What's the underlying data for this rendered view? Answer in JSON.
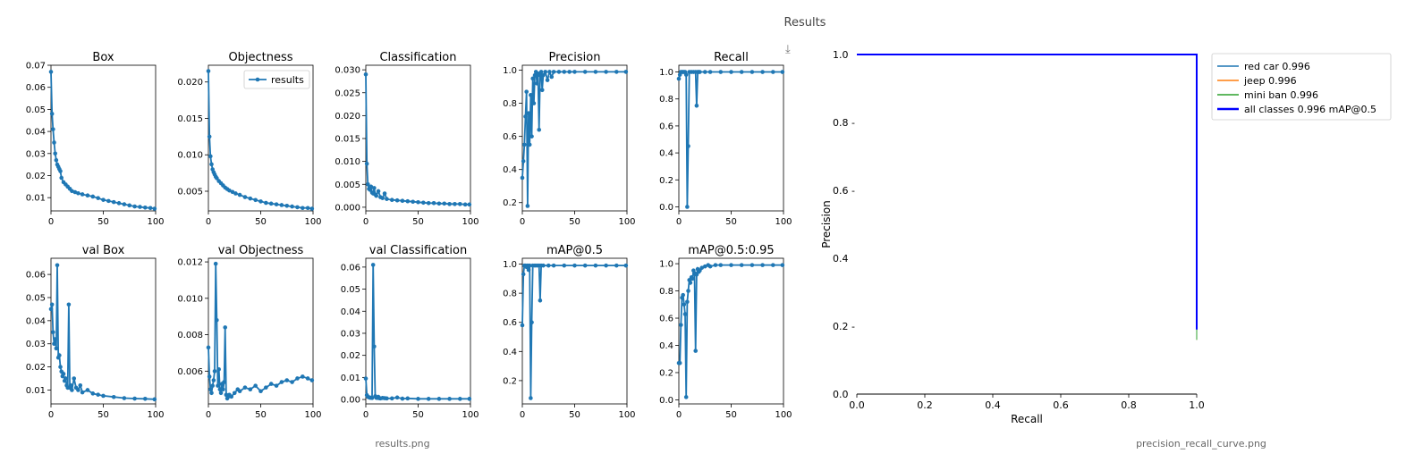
{
  "panel": {
    "title": "Results",
    "download_icon": "download-icon"
  },
  "captions": {
    "results": "results.png",
    "pr_curve": "precision_recall_curve.png"
  },
  "colors": {
    "series": "#1f77b4",
    "red_car": "#1f77b4",
    "jeep": "#ff7f0e",
    "mini_ban": "#2ca02c",
    "all": "#0000ff"
  },
  "chart_data": [
    {
      "type": "line",
      "title": "Box",
      "legend": "",
      "xlim": [
        0,
        100
      ],
      "ylim": [
        0.004,
        0.07
      ],
      "xticks": [
        0,
        50,
        100
      ],
      "yticks": [
        0.01,
        0.02,
        0.03,
        0.04,
        0.05,
        0.06,
        0.07
      ],
      "ytick_labels": [
        "0.01",
        "0.02",
        "0.03",
        "0.04",
        "0.05",
        "0.06",
        "0.07"
      ],
      "x": [
        0,
        1,
        2,
        3,
        4,
        5,
        6,
        7,
        8,
        9,
        10,
        12,
        14,
        16,
        18,
        20,
        23,
        26,
        30,
        35,
        40,
        45,
        50,
        55,
        60,
        65,
        70,
        75,
        80,
        85,
        90,
        95,
        99
      ],
      "y": [
        0.067,
        0.048,
        0.041,
        0.035,
        0.03,
        0.027,
        0.025,
        0.024,
        0.023,
        0.022,
        0.019,
        0.017,
        0.016,
        0.015,
        0.014,
        0.013,
        0.0125,
        0.012,
        0.0115,
        0.011,
        0.0105,
        0.0098,
        0.009,
        0.0085,
        0.008,
        0.0075,
        0.007,
        0.0065,
        0.006,
        0.0058,
        0.0055,
        0.0053,
        0.005
      ]
    },
    {
      "type": "line",
      "title": "Objectness",
      "legend": "results",
      "xlim": [
        0,
        100
      ],
      "ylim": [
        0.0023,
        0.0223
      ],
      "xticks": [
        0,
        50,
        100
      ],
      "yticks": [
        0.005,
        0.01,
        0.015,
        0.02
      ],
      "ytick_labels": [
        "0.005",
        "0.010",
        "0.015",
        "0.020"
      ],
      "x": [
        0,
        1,
        2,
        3,
        4,
        5,
        6,
        7,
        8,
        10,
        12,
        14,
        16,
        18,
        20,
        23,
        26,
        30,
        35,
        40,
        45,
        50,
        55,
        60,
        65,
        70,
        75,
        80,
        85,
        90,
        95,
        99
      ],
      "y": [
        0.0215,
        0.0125,
        0.0098,
        0.0087,
        0.008,
        0.0076,
        0.0073,
        0.007,
        0.0068,
        0.0064,
        0.0061,
        0.0058,
        0.0055,
        0.0053,
        0.0051,
        0.0049,
        0.0047,
        0.0045,
        0.0042,
        0.004,
        0.0038,
        0.0036,
        0.0034,
        0.0033,
        0.0032,
        0.0031,
        0.003,
        0.0029,
        0.0028,
        0.0027,
        0.0027,
        0.0026
      ]
    },
    {
      "type": "line",
      "title": "Classification",
      "legend": "",
      "xlim": [
        0,
        100
      ],
      "ylim": [
        -0.0008,
        0.031
      ],
      "xticks": [
        0,
        50,
        100
      ],
      "yticks": [
        0,
        0.005,
        0.01,
        0.015,
        0.02,
        0.025,
        0.03
      ],
      "ytick_labels": [
        "0.000",
        "0.005",
        "0.010",
        "0.015",
        "0.020",
        "0.025",
        "0.030"
      ],
      "x": [
        0,
        1,
        2,
        3,
        4,
        5,
        6,
        7,
        8,
        9,
        10,
        12,
        14,
        16,
        18,
        20,
        25,
        30,
        35,
        40,
        45,
        50,
        55,
        60,
        65,
        70,
        75,
        80,
        85,
        90,
        95,
        99
      ],
      "y": [
        0.029,
        0.0095,
        0.005,
        0.004,
        0.0038,
        0.0045,
        0.0032,
        0.003,
        0.0042,
        0.0028,
        0.0025,
        0.0035,
        0.0022,
        0.002,
        0.003,
        0.0018,
        0.0016,
        0.0015,
        0.0014,
        0.0013,
        0.0012,
        0.0011,
        0.001,
        0.0009,
        0.0009,
        0.0008,
        0.0008,
        0.0007,
        0.0007,
        0.0007,
        0.0006,
        0.0006
      ]
    },
    {
      "type": "line",
      "title": "Precision",
      "legend": "",
      "xlim": [
        0,
        100
      ],
      "ylim": [
        0.15,
        1.03
      ],
      "xticks": [
        0,
        50,
        100
      ],
      "yticks": [
        0.2,
        0.4,
        0.6,
        0.8,
        1.0
      ],
      "ytick_labels": [
        "0.2",
        "0.4",
        "0.6",
        "0.8",
        "1.0"
      ],
      "x": [
        0,
        1,
        2,
        3,
        4,
        5,
        6,
        7,
        8,
        9,
        10,
        11,
        12,
        13,
        14,
        15,
        16,
        17,
        18,
        19,
        20,
        22,
        24,
        26,
        28,
        30,
        35,
        40,
        45,
        50,
        60,
        70,
        80,
        90,
        99
      ],
      "y": [
        0.35,
        0.45,
        0.55,
        0.72,
        0.87,
        0.18,
        0.74,
        0.55,
        0.85,
        0.6,
        0.95,
        0.8,
        0.97,
        0.99,
        0.92,
        0.98,
        0.64,
        0.97,
        0.99,
        0.88,
        0.97,
        0.99,
        0.94,
        0.99,
        0.96,
        0.99,
        0.99,
        0.99,
        0.99,
        0.99,
        0.99,
        0.99,
        0.99,
        0.99,
        0.99
      ]
    },
    {
      "type": "line",
      "title": "Recall",
      "legend": "",
      "xlim": [
        0,
        100
      ],
      "ylim": [
        -0.03,
        1.05
      ],
      "xticks": [
        0,
        50,
        100
      ],
      "yticks": [
        0,
        0.2,
        0.4,
        0.6,
        0.8,
        1.0
      ],
      "ytick_labels": [
        "0.0",
        "0.2",
        "0.4",
        "0.6",
        "0.8",
        "1.0"
      ],
      "x": [
        0,
        1,
        2,
        3,
        4,
        5,
        6,
        7,
        8,
        9,
        10,
        12,
        14,
        16,
        17,
        18,
        19,
        20,
        25,
        30,
        40,
        50,
        60,
        70,
        80,
        90,
        99
      ],
      "y": [
        0.95,
        0.98,
        1.0,
        1.0,
        1.0,
        1.0,
        1.0,
        0.98,
        0.0,
        0.45,
        1.0,
        1.0,
        1.0,
        1.0,
        0.75,
        1.0,
        1.0,
        1.0,
        1.0,
        1.0,
        1.0,
        1.0,
        1.0,
        1.0,
        1.0,
        1.0,
        1.0
      ]
    },
    {
      "type": "line",
      "title": "val Box",
      "legend": "",
      "xlim": [
        0,
        100
      ],
      "ylim": [
        0.004,
        0.067
      ],
      "xticks": [
        0,
        50,
        100
      ],
      "yticks": [
        0.01,
        0.02,
        0.03,
        0.04,
        0.05,
        0.06
      ],
      "ytick_labels": [
        "0.01",
        "0.02",
        "0.03",
        "0.04",
        "0.05",
        "0.06"
      ],
      "x": [
        0,
        1,
        2,
        3,
        4,
        5,
        6,
        7,
        8,
        9,
        10,
        11,
        12,
        13,
        14,
        15,
        16,
        17,
        18,
        19,
        20,
        22,
        24,
        26,
        28,
        30,
        35,
        40,
        45,
        50,
        60,
        70,
        80,
        90,
        99
      ],
      "y": [
        0.045,
        0.047,
        0.035,
        0.03,
        0.032,
        0.028,
        0.064,
        0.024,
        0.025,
        0.02,
        0.018,
        0.016,
        0.017,
        0.014,
        0.015,
        0.012,
        0.011,
        0.047,
        0.011,
        0.012,
        0.01,
        0.015,
        0.011,
        0.01,
        0.012,
        0.009,
        0.01,
        0.0085,
        0.008,
        0.0075,
        0.007,
        0.0065,
        0.0063,
        0.0062,
        0.006
      ]
    },
    {
      "type": "line",
      "title": "val Objectness",
      "legend": "",
      "xlim": [
        0,
        100
      ],
      "ylim": [
        0.0042,
        0.0122
      ],
      "xticks": [
        0,
        50,
        100
      ],
      "yticks": [
        0.006,
        0.008,
        0.01,
        0.012
      ],
      "ytick_labels": [
        "0.006",
        "0.008",
        "0.010",
        "0.012"
      ],
      "x": [
        0,
        1,
        2,
        3,
        4,
        5,
        6,
        7,
        8,
        9,
        10,
        11,
        12,
        13,
        14,
        15,
        16,
        17,
        18,
        19,
        20,
        22,
        25,
        28,
        30,
        35,
        40,
        45,
        50,
        55,
        60,
        65,
        70,
        75,
        80,
        85,
        90,
        95,
        99
      ],
      "y": [
        0.0073,
        0.0057,
        0.005,
        0.0048,
        0.0052,
        0.0055,
        0.006,
        0.0119,
        0.0088,
        0.0052,
        0.0061,
        0.005,
        0.0048,
        0.0053,
        0.005,
        0.0054,
        0.0084,
        0.0047,
        0.0045,
        0.0046,
        0.0047,
        0.0046,
        0.0048,
        0.005,
        0.0049,
        0.0051,
        0.005,
        0.0052,
        0.0049,
        0.0051,
        0.0053,
        0.0052,
        0.0054,
        0.0055,
        0.0054,
        0.0056,
        0.0057,
        0.0056,
        0.0055
      ]
    },
    {
      "type": "line",
      "title": "val Classification",
      "legend": "",
      "xlim": [
        0,
        100
      ],
      "ylim": [
        -0.002,
        0.064
      ],
      "xticks": [
        0,
        50,
        100
      ],
      "yticks": [
        0,
        0.01,
        0.02,
        0.03,
        0.04,
        0.05,
        0.06
      ],
      "ytick_labels": [
        "0.00",
        "0.01",
        "0.02",
        "0.03",
        "0.04",
        "0.05",
        "0.06"
      ],
      "x": [
        0,
        1,
        2,
        3,
        4,
        5,
        6,
        7,
        8,
        9,
        10,
        11,
        12,
        13,
        14,
        16,
        18,
        20,
        25,
        30,
        35,
        40,
        50,
        60,
        70,
        80,
        90,
        99
      ],
      "y": [
        0.0095,
        0.002,
        0.0012,
        0.001,
        0.0008,
        0.0008,
        0.0007,
        0.061,
        0.024,
        0.0015,
        0.0008,
        0.0007,
        0.0012,
        0.0006,
        0.0005,
        0.0007,
        0.0006,
        0.0005,
        0.0005,
        0.0009,
        0.0004,
        0.0005,
        0.0003,
        0.0003,
        0.0003,
        0.0003,
        0.0003,
        0.0003
      ]
    },
    {
      "type": "line",
      "title": "mAP@0.5",
      "legend": "",
      "xlim": [
        0,
        100
      ],
      "ylim": [
        0.04,
        1.04
      ],
      "xticks": [
        0,
        50,
        100
      ],
      "yticks": [
        0.2,
        0.4,
        0.6,
        0.8,
        1.0
      ],
      "ytick_labels": [
        "0.2",
        "0.4",
        "0.6",
        "0.8",
        "1.0"
      ],
      "x": [
        0,
        1,
        2,
        3,
        4,
        5,
        6,
        7,
        8,
        9,
        10,
        12,
        14,
        16,
        17,
        18,
        20,
        25,
        30,
        40,
        50,
        60,
        70,
        80,
        90,
        99
      ],
      "y": [
        0.58,
        0.93,
        0.99,
        0.99,
        0.98,
        0.99,
        0.96,
        0.99,
        0.08,
        0.6,
        0.99,
        0.99,
        0.99,
        0.99,
        0.75,
        0.99,
        0.99,
        0.99,
        0.99,
        0.99,
        0.99,
        0.99,
        0.99,
        0.99,
        0.99,
        0.99
      ]
    },
    {
      "type": "line",
      "title": "mAP@0.5:0.95",
      "legend": "",
      "xlim": [
        0,
        100
      ],
      "ylim": [
        -0.03,
        1.04
      ],
      "xticks": [
        0,
        50,
        100
      ],
      "yticks": [
        0,
        0.2,
        0.4,
        0.6,
        0.8,
        1.0
      ],
      "ytick_labels": [
        "0.0",
        "0.2",
        "0.4",
        "0.6",
        "0.8",
        "1.0"
      ],
      "x": [
        0,
        1,
        2,
        3,
        4,
        5,
        6,
        7,
        8,
        9,
        10,
        11,
        12,
        13,
        14,
        15,
        16,
        17,
        18,
        19,
        20,
        22,
        25,
        28,
        30,
        35,
        40,
        50,
        60,
        70,
        80,
        90,
        99
      ],
      "y": [
        0.27,
        0.27,
        0.55,
        0.75,
        0.77,
        0.7,
        0.63,
        0.02,
        0.72,
        0.8,
        0.88,
        0.86,
        0.9,
        0.89,
        0.95,
        0.93,
        0.36,
        0.92,
        0.96,
        0.94,
        0.95,
        0.97,
        0.98,
        0.99,
        0.98,
        0.99,
        0.99,
        0.99,
        0.99,
        0.99,
        0.99,
        0.99,
        0.99
      ]
    },
    {
      "type": "line",
      "title": "",
      "xlabel": "Recall",
      "ylabel": "Precision",
      "xlim": [
        0,
        1
      ],
      "ylim": [
        0,
        1
      ],
      "grid": false,
      "legend_position": "outside top-right",
      "xticks": [
        0,
        0.2,
        0.4,
        0.6,
        0.8,
        1.0
      ],
      "xtick_labels": [
        "0.0",
        "0.2",
        "0.4",
        "0.6",
        "0.8",
        "1.0"
      ],
      "yticks": [
        0,
        0.2,
        0.4,
        0.6,
        0.8,
        1.0
      ],
      "ytick_labels": [
        "0.0",
        "0.2 -",
        "0.4",
        "0.6 -",
        "0.8 -",
        "1.0"
      ],
      "series": [
        {
          "name": "red car 0.996",
          "color": "#1f77b4",
          "width": 1,
          "x": [
            0,
            1,
            1
          ],
          "y": [
            1,
            1,
            0.16
          ]
        },
        {
          "name": "jeep 0.996",
          "color": "#ff7f0e",
          "width": 1,
          "x": [
            0,
            1,
            1
          ],
          "y": [
            1,
            1,
            0.16
          ]
        },
        {
          "name": "mini ban 0.996",
          "color": "#2ca02c",
          "width": 1,
          "x": [
            0,
            1,
            1
          ],
          "y": [
            1,
            1,
            0.16
          ]
        },
        {
          "name": "all classes 0.996 mAP@0.5",
          "color": "#0000ff",
          "width": 2,
          "x": [
            0,
            1,
            1
          ],
          "y": [
            1,
            1,
            0.19
          ]
        }
      ]
    }
  ]
}
